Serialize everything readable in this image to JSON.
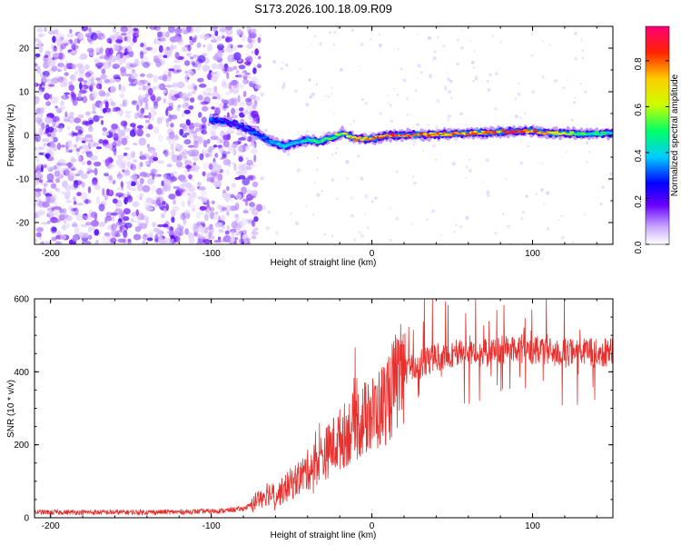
{
  "title": "S173.2026.100.18.09.R09",
  "colorbar_label": "Normalized spectral amplitude",
  "colors": {
    "snr_line": "#e8312e",
    "noise_purple": "#7a2cf0",
    "axis": "#000000"
  },
  "chart_data": [
    {
      "type": "heatmap",
      "name": "spectrogram",
      "xlabel": "Height of straight line (km)",
      "ylabel": "Frequency (Hz)",
      "xlim": [
        -210,
        150
      ],
      "ylim": [
        -25,
        25
      ],
      "x_ticks": [
        "-200",
        "-100",
        "0",
        "100"
      ],
      "y_ticks": [
        "20",
        "10",
        "0",
        "-10",
        "-20"
      ],
      "colorbar": {
        "range": [
          0.0,
          0.95
        ],
        "ticks": [
          "0.0",
          "0.2",
          "0.4",
          "0.6",
          "0.8"
        ],
        "colormap": [
          "#ffffff",
          "#c9a8ff",
          "#6a00ff",
          "#0000ff",
          "#00ccff",
          "#00ff66",
          "#ccff00",
          "#ffcc00",
          "#ff2200",
          "#ff0077"
        ]
      },
      "noise_region_x": [
        -210,
        -78
      ],
      "ridge": {
        "x": [
          -100,
          -92,
          -85,
          -78,
          -70,
          -62,
          -55,
          -48,
          -40,
          -33,
          -25,
          -18,
          -10,
          0,
          10,
          20,
          30,
          40,
          50,
          60,
          70,
          80,
          90,
          100,
          110,
          120,
          130,
          140,
          150
        ],
        "y": [
          3.5,
          3.2,
          2.5,
          1.5,
          0.0,
          -1.5,
          -2.5,
          -1.8,
          -1.0,
          -1.5,
          -0.5,
          0.5,
          -0.8,
          -0.8,
          0.0,
          0.0,
          0.2,
          0.2,
          0.3,
          0.5,
          0.6,
          0.8,
          0.9,
          1.0,
          0.5,
          0.5,
          0.3,
          0.4,
          0.5
        ],
        "amplitude": [
          0.35,
          0.3,
          0.25,
          0.3,
          0.35,
          0.4,
          0.45,
          0.45,
          0.5,
          0.55,
          0.6,
          0.7,
          0.8,
          0.85,
          0.9,
          0.9,
          0.85,
          0.8,
          0.85,
          0.8,
          0.85,
          0.85,
          0.9,
          0.85,
          0.75,
          0.7,
          0.6,
          0.55,
          0.5
        ]
      }
    },
    {
      "type": "line",
      "name": "snr",
      "xlabel": "Height of straight line (km)",
      "ylabel": "SNR (10 * v/v)",
      "xlim": [
        -210,
        150
      ],
      "ylim": [
        0,
        600
      ],
      "x_ticks": [
        "-200",
        "-100",
        "0",
        "100"
      ],
      "y_ticks": [
        "600",
        "400",
        "200",
        "0"
      ],
      "series": [
        {
          "name": "SNR",
          "x": [
            -210,
            -180,
            -150,
            -120,
            -100,
            -90,
            -80,
            -75,
            -70,
            -65,
            -60,
            -55,
            -50,
            -45,
            -40,
            -35,
            -30,
            -25,
            -20,
            -15,
            -10,
            -5,
            0,
            5,
            10,
            15,
            20,
            25,
            30,
            40,
            50,
            60,
            70,
            80,
            90,
            100,
            110,
            120,
            130,
            140,
            150
          ],
          "values": [
            15,
            15,
            15,
            16,
            18,
            20,
            25,
            35,
            55,
            70,
            60,
            75,
            95,
            110,
            130,
            150,
            170,
            195,
            215,
            235,
            255,
            270,
            280,
            300,
            330,
            370,
            395,
            410,
            420,
            440,
            450,
            455,
            450,
            460,
            465,
            460,
            455,
            450,
            455,
            450,
            455
          ]
        }
      ]
    }
  ]
}
